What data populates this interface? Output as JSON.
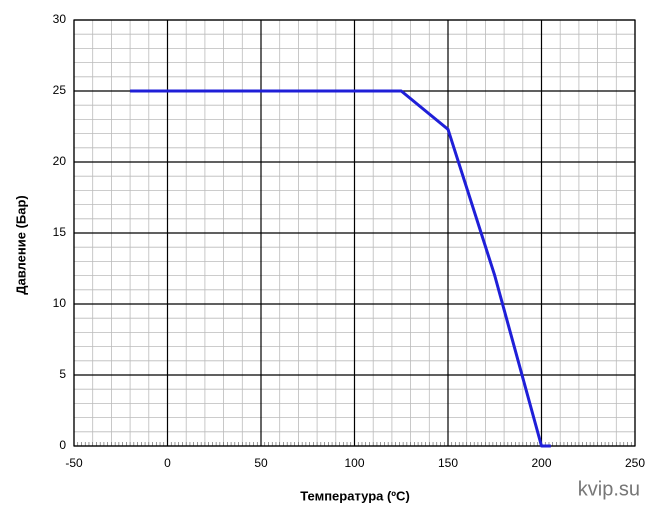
{
  "chart_data": {
    "type": "line",
    "x": [
      -20,
      125,
      150,
      175,
      200,
      205
    ],
    "series": [
      {
        "name": "Давление",
        "color": "#1f1fd8",
        "values": [
          25,
          25,
          22.3,
          12,
          0,
          0
        ]
      }
    ],
    "xlim": [
      -50,
      250
    ],
    "xticks": [
      -50,
      0,
      50,
      100,
      150,
      200,
      250
    ],
    "ylim": [
      0,
      30
    ],
    "yticks": [
      0,
      5,
      10,
      15,
      20,
      25,
      30
    ],
    "xlabel": "Температура (ºC)",
    "ylabel": "Давление (Бар)",
    "grid": true,
    "minor_grid": {
      "x": 10,
      "y": 1
    },
    "watermark": "kvip.su"
  }
}
